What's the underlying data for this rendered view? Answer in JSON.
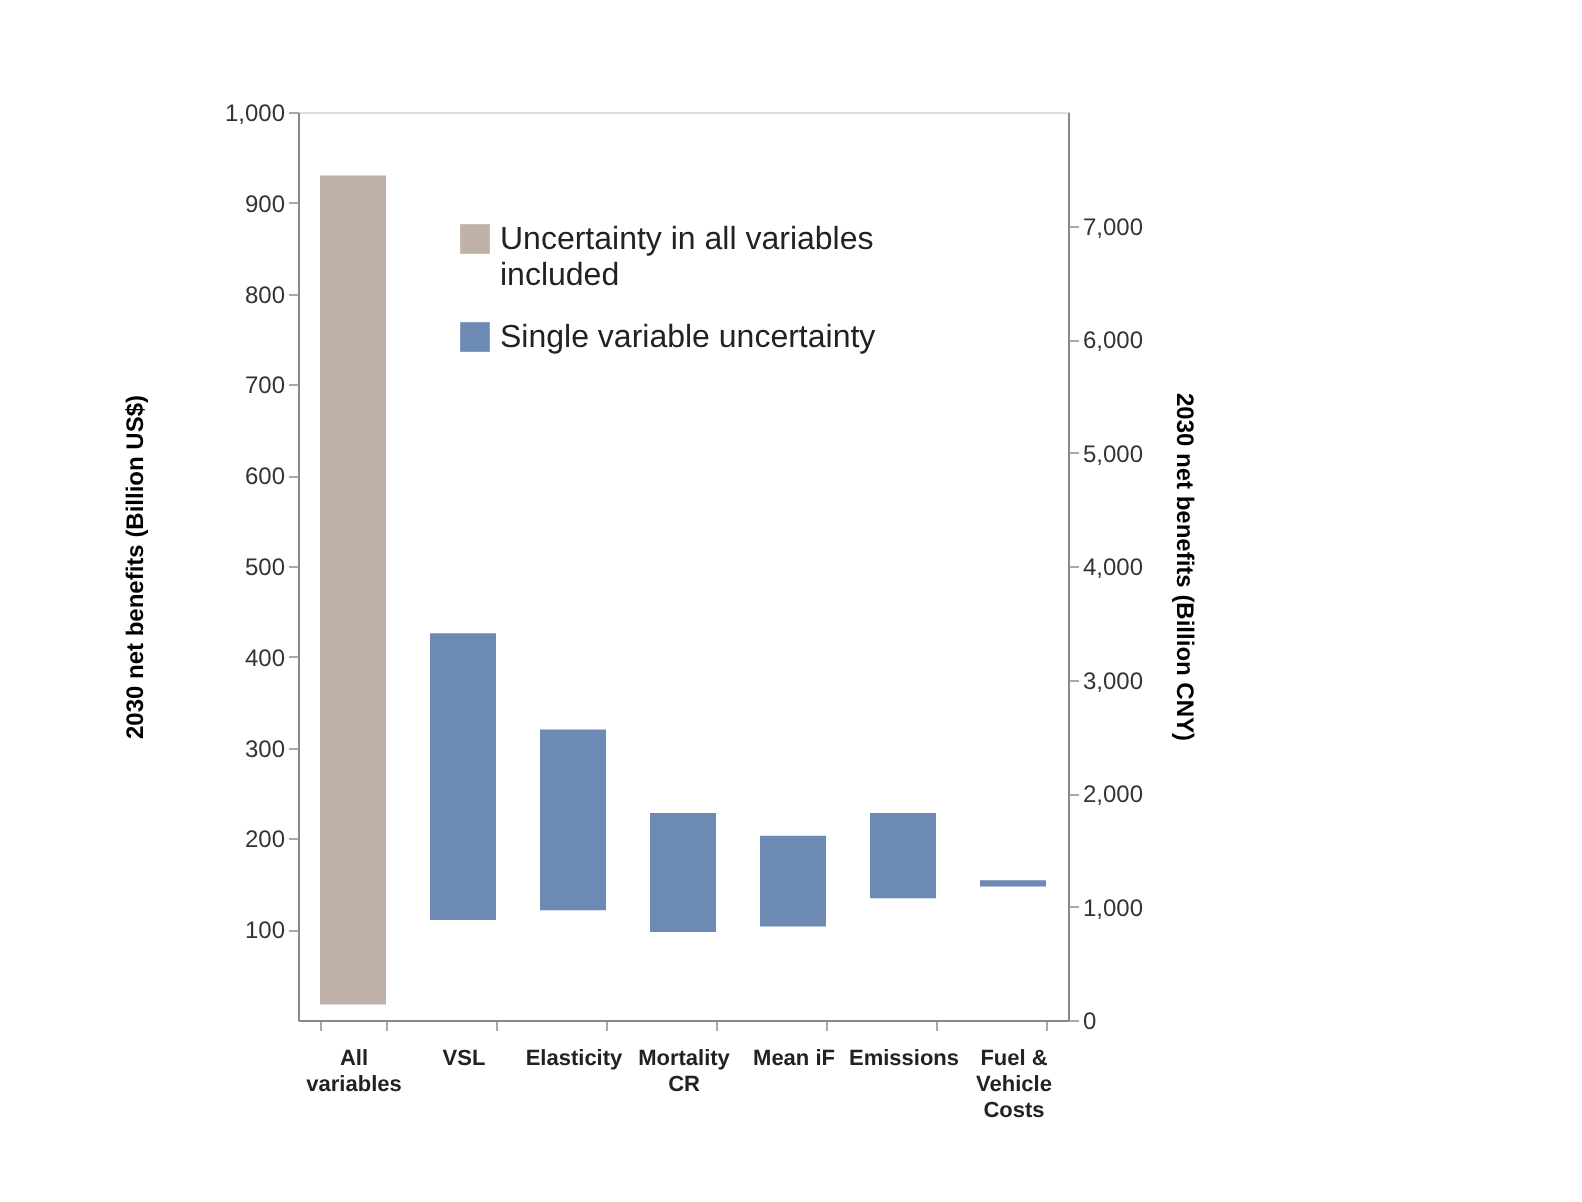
{
  "chart_data": {
    "type": "bar",
    "categories": [
      "All variables",
      "VSL",
      "Elasticity",
      "Mortality CR",
      "Mean iF",
      "Emissions",
      "Fuel & Vehicle Costs"
    ],
    "ylabel": "2030 net benefits (Billion US$)",
    "y2label": "2030 net benefits (Billion CNY)",
    "ylim": [
      0,
      1000
    ],
    "yticks": [
      100,
      200,
      300,
      400,
      500,
      600,
      700,
      800,
      900,
      {
        "value": 1000,
        "label": "1,000"
      }
    ],
    "y2lim": [
      0,
      8000
    ],
    "y2ticks": [
      0,
      {
        "value": 1000,
        "label": "1,000"
      },
      {
        "value": 2000,
        "label": "2,000"
      },
      {
        "value": 3000,
        "label": "3,000"
      },
      {
        "value": 4000,
        "label": "4,000"
      },
      {
        "value": 5000,
        "label": "5,000"
      },
      {
        "value": 6000,
        "label": "6,000"
      },
      {
        "value": 7000,
        "label": "7,000"
      }
    ],
    "series": [
      {
        "name": "Uncertainty in all variables included",
        "color": "#bfb0a8",
        "values": [
          913,
          null,
          null,
          null,
          null,
          null,
          null
        ],
        "base": [
          17,
          null,
          null,
          null,
          null,
          null,
          null
        ]
      },
      {
        "name": "Single variable uncertainty",
        "color": "#6d8ab5",
        "values": [
          null,
          316,
          199,
          131,
          100,
          94,
          7
        ],
        "base": [
          null,
          110,
          121,
          97,
          103,
          134,
          147
        ]
      }
    ],
    "legend": "top right",
    "grid": false
  }
}
